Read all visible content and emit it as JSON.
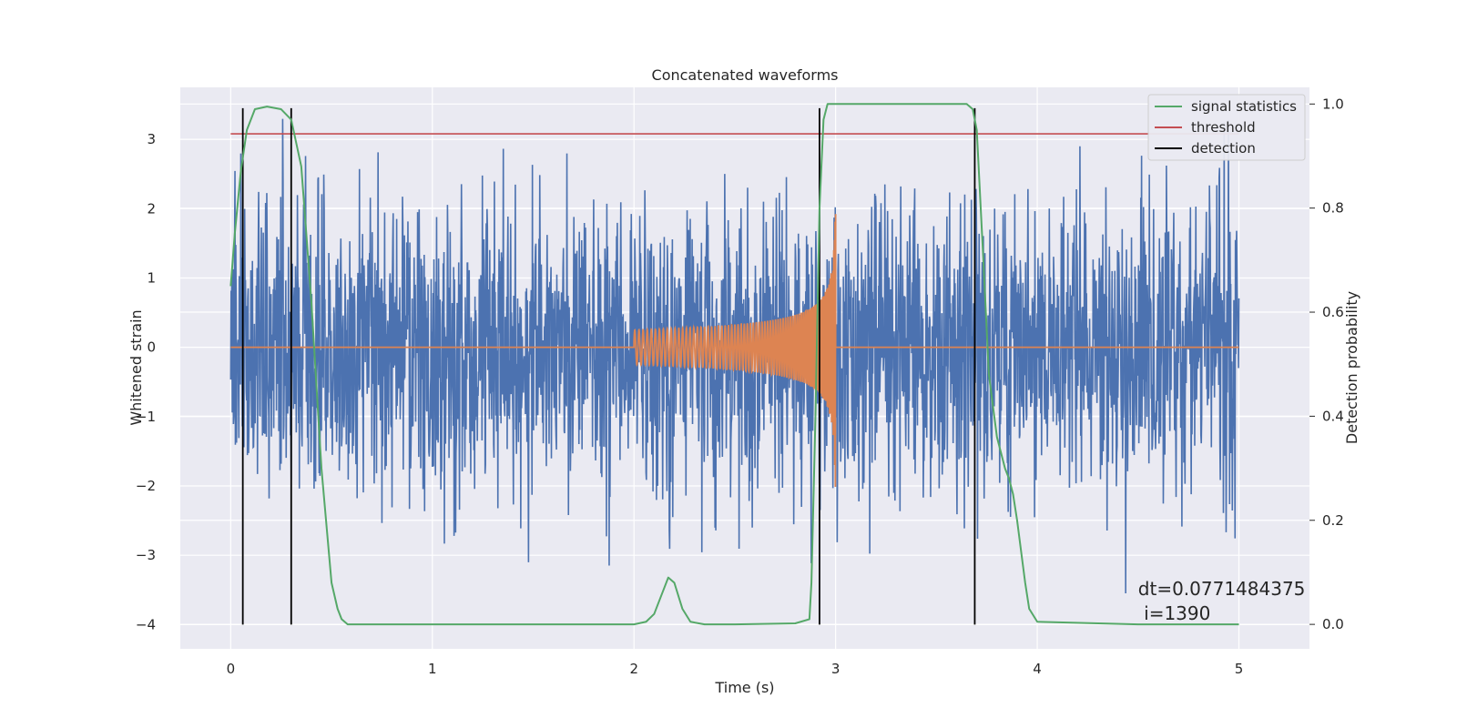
{
  "chart_data": {
    "type": "line",
    "title": "Concatenated waveforms",
    "xlabel": "Time (s)",
    "ylabel": "Whitened strain",
    "y2label": "Detection probability",
    "xlim": [
      -0.25,
      5.35
    ],
    "ylim": [
      -4.35,
      3.75
    ],
    "y2lim": [
      -0.047,
      1.032
    ],
    "x_ticks": [
      0,
      1,
      2,
      3,
      4,
      5
    ],
    "y_ticks": [
      -4,
      -3,
      -2,
      -1,
      0,
      1,
      2,
      3
    ],
    "y2_ticks": [
      0.0,
      0.2,
      0.4,
      0.6,
      0.8,
      1.0
    ],
    "grid": true,
    "legend_placement": "upper-right",
    "series": [
      {
        "name": "",
        "role": "noisy whitened strain",
        "axis": "left",
        "color": "#4c72b0",
        "x_range": [
          0,
          5
        ],
        "envelope_approx": [
          -3.9,
          3.4
        ]
      },
      {
        "name": "",
        "role": "injected chirp",
        "axis": "left",
        "color": "#dd8452",
        "x_range": [
          0,
          5
        ],
        "chirp_start": 2.0,
        "chirp_end": 3.0,
        "peak_amplitude": 2.25
      },
      {
        "name": "signal statistics",
        "axis": "right",
        "color": "#55a868",
        "x": [
          0.0,
          0.02,
          0.05,
          0.08,
          0.12,
          0.18,
          0.25,
          0.3,
          0.35,
          0.4,
          0.45,
          0.5,
          0.53,
          0.55,
          0.58,
          1.0,
          1.5,
          2.0,
          2.06,
          2.1,
          2.14,
          2.17,
          2.2,
          2.24,
          2.28,
          2.35,
          2.5,
          2.8,
          2.87,
          2.88,
          2.9,
          2.92,
          2.94,
          2.96,
          3.0,
          3.5,
          3.65,
          3.68,
          3.7,
          3.73,
          3.76,
          3.8,
          3.84,
          3.86,
          3.88,
          3.9,
          3.92,
          3.94,
          3.96,
          4.0,
          4.5,
          5.0
        ],
        "y": [
          0.65,
          0.75,
          0.87,
          0.95,
          0.99,
          0.995,
          0.99,
          0.97,
          0.88,
          0.62,
          0.3,
          0.08,
          0.03,
          0.01,
          0.0,
          0.0,
          0.0,
          0.0,
          0.005,
          0.02,
          0.06,
          0.09,
          0.08,
          0.03,
          0.005,
          0.0,
          0.0,
          0.002,
          0.01,
          0.08,
          0.4,
          0.8,
          0.97,
          1.0,
          1.0,
          1.0,
          1.0,
          0.99,
          0.95,
          0.72,
          0.48,
          0.36,
          0.3,
          0.28,
          0.25,
          0.2,
          0.14,
          0.08,
          0.03,
          0.005,
          0.0,
          0.0
        ]
      },
      {
        "name": "threshold",
        "axis": "left",
        "color": "#c44e52",
        "x": [
          0,
          5
        ],
        "y": [
          3.08,
          3.08
        ]
      },
      {
        "name": "detection",
        "axis": "left",
        "color": "#000000",
        "x_positions": [
          0.06,
          0.3,
          2.92,
          3.69
        ],
        "y_range": [
          -4.0,
          3.45
        ]
      }
    ],
    "annotations": [
      {
        "text_line1": "dt=0.0771484375",
        "text_line2": " i=1390",
        "x": 4.5,
        "y2": 0.07
      }
    ]
  }
}
